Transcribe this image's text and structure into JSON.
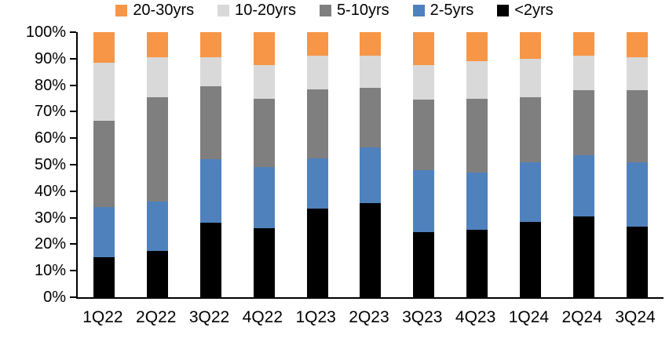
{
  "chart_data": {
    "type": "bar",
    "variant": "stacked-percent",
    "title": "",
    "xlabel": "",
    "ylabel": "",
    "ylim": [
      0,
      100
    ],
    "ytick_step": 10,
    "yticks": [
      "100%",
      "90%",
      "80%",
      "70%",
      "60%",
      "50%",
      "40%",
      "30%",
      "20%",
      "10%",
      "0%"
    ],
    "grid": false,
    "legend_position": "top",
    "legend_order": [
      "20-30yrs",
      "10-20yrs",
      "5-10yrs",
      "2-5yrs",
      "<2yrs"
    ],
    "categories": [
      "1Q22",
      "2Q22",
      "3Q22",
      "4Q22",
      "1Q23",
      "2Q23",
      "3Q23",
      "4Q23",
      "1Q24",
      "2Q24",
      "3Q24"
    ],
    "series": [
      {
        "name": "<2yrs",
        "color": "#000000",
        "values": [
          15,
          17.5,
          28,
          26,
          33.5,
          35.5,
          24.5,
          25.5,
          28.5,
          30.5,
          26.5
        ]
      },
      {
        "name": "2-5yrs",
        "color": "#4F81BD",
        "values": [
          19,
          18.5,
          24,
          23,
          19,
          21,
          23.5,
          21.5,
          22.5,
          23,
          24.5
        ]
      },
      {
        "name": "5-10yrs",
        "color": "#7F7F7F",
        "values": [
          32.5,
          39.5,
          27.5,
          26,
          26,
          22.5,
          26.5,
          28,
          24.5,
          24.5,
          27
        ]
      },
      {
        "name": "10-20yrs",
        "color": "#D9D9D9",
        "values": [
          22,
          15,
          11,
          12.5,
          12.5,
          12,
          13,
          14,
          14.5,
          13,
          12.5
        ]
      },
      {
        "name": "20-30yrs",
        "color": "#F79646",
        "values": [
          11.5,
          9.5,
          9.5,
          12.5,
          9,
          9,
          12.5,
          11,
          10,
          9,
          9.5
        ]
      }
    ],
    "colors": {
      "axis": "#000000",
      "text": "#000000",
      "background": "#FFFFFF"
    }
  }
}
